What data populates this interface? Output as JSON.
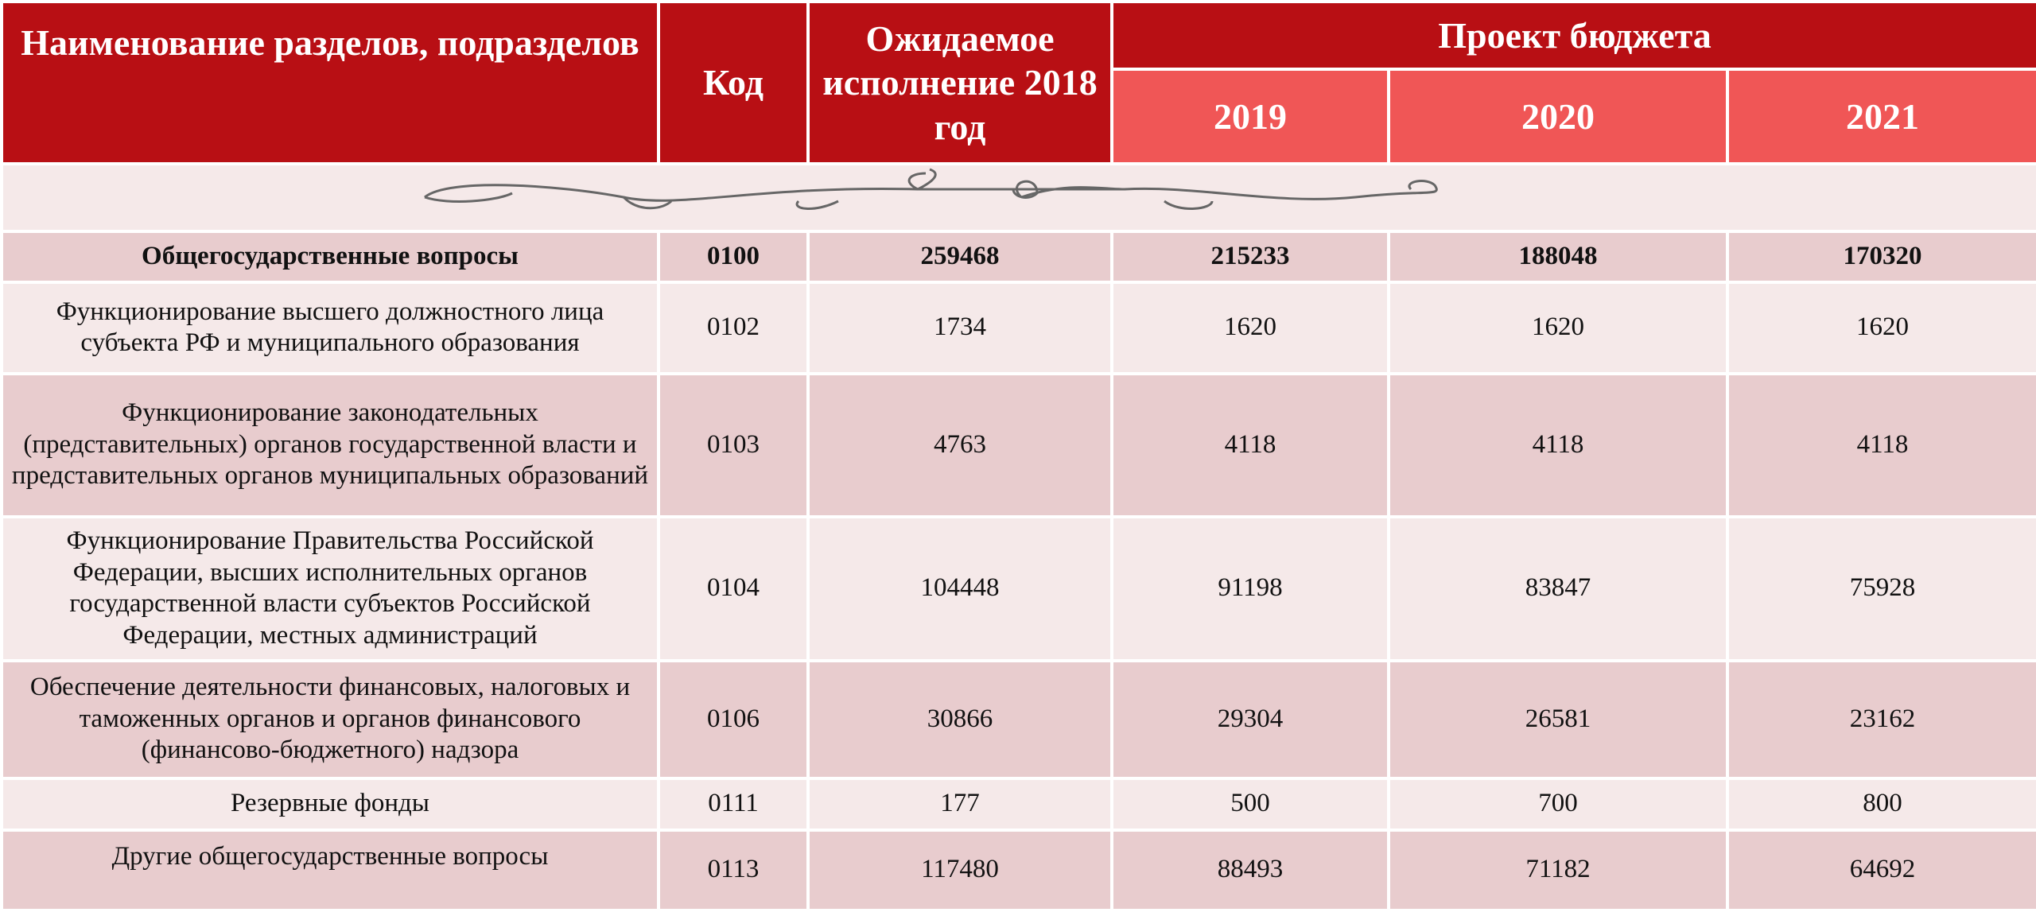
{
  "header": {
    "name": "Наименование разделов, подразделов",
    "code": "Код",
    "expected": "Ожидаемое исполнение 2018 год",
    "project": "Проект бюджета",
    "years": [
      "2019",
      "2020",
      "2021"
    ]
  },
  "rows": [
    {
      "name": "Общегосударственные вопросы",
      "code": "0100",
      "values": [
        259468,
        215233,
        188048,
        170320
      ]
    },
    {
      "name": "Функционирование высшего должностного лица субъекта РФ и муниципального образования",
      "code": "0102",
      "values": [
        1734,
        1620,
        1620,
        1620
      ]
    },
    {
      "name": "Функционирование законодательных (представительных) органов государственной власти и представительных органов муниципальных образований",
      "code": "0103",
      "values": [
        4763,
        4118,
        4118,
        4118
      ]
    },
    {
      "name": "Функционирование Правительства Российской Федерации, высших исполнительных органов государственной власти субъектов Российской Федерации, местных администраций",
      "code": "0104",
      "values": [
        104448,
        91198,
        83847,
        75928
      ]
    },
    {
      "name": "Обеспечение деятельности финансовых, налоговых и таможенных органов и органов финансового (финансово-бюджетного) надзора",
      "code": "0106",
      "values": [
        30866,
        29304,
        26581,
        23162
      ]
    },
    {
      "name": "Резервные фонды",
      "code": "0111",
      "values": [
        177,
        500,
        700,
        800
      ]
    },
    {
      "name": "Другие общегосударственные вопросы",
      "code": "0113",
      "values": [
        117480,
        88493,
        71182,
        64692
      ]
    }
  ]
}
